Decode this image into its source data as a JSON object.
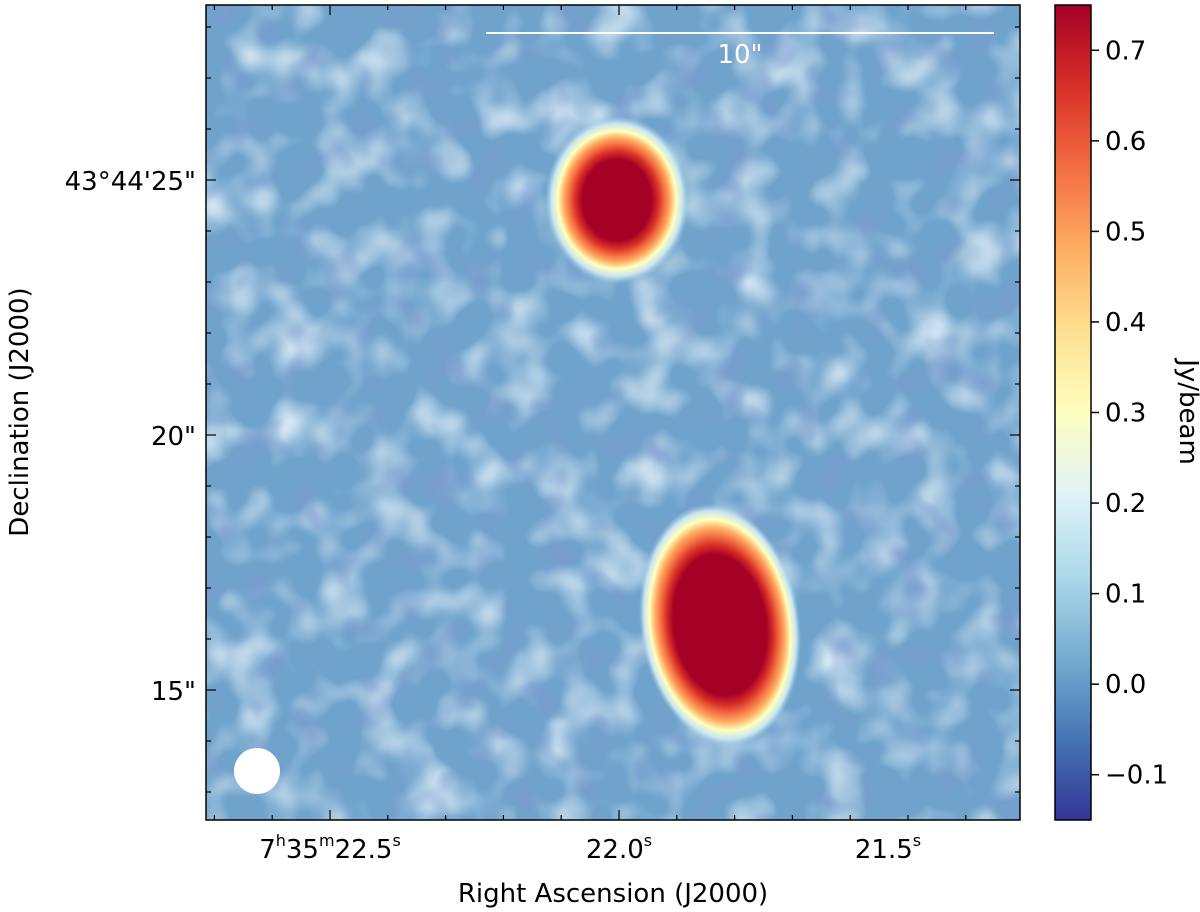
{
  "image": {
    "description": "Radio continuum image of two compact sources with colorbar",
    "xlabel": "Right Ascension (J2000)",
    "ylabel": "Declination (J2000)",
    "colorbar_label": "Jy/beam",
    "scale_bar_label": "10\"",
    "ra_ticks": [
      {
        "h": "7",
        "m": "35",
        "s": "22.5",
        "sup_h": "h",
        "sup_m": "m",
        "sup_s": "s",
        "full": true
      },
      {
        "s": "22.0",
        "sup_s": "s",
        "full": false
      },
      {
        "s": "21.5",
        "sup_s": "s",
        "full": false
      }
    ],
    "dec_ticks": [
      "43°44'25\"",
      "20\"",
      "15\""
    ],
    "colorbar": {
      "min": -0.15,
      "max": 0.75,
      "ticks": [
        "0.7",
        "0.6",
        "0.5",
        "0.4",
        "0.3",
        "0.2",
        "0.1",
        "0.0",
        "−0.1"
      ],
      "tick_values": [
        0.7,
        0.6,
        0.5,
        0.4,
        0.3,
        0.2,
        0.1,
        0.0,
        -0.1
      ],
      "colormap": "RdYlBu_r",
      "stops": [
        "#313695",
        "#4575b4",
        "#74add1",
        "#abd9e9",
        "#e0f3f8",
        "#ffffbf",
        "#fee090",
        "#fdae61",
        "#f46d43",
        "#d73027",
        "#a50026"
      ]
    },
    "background_color": "#74a9cf",
    "beam_color": "#ffffff"
  }
}
